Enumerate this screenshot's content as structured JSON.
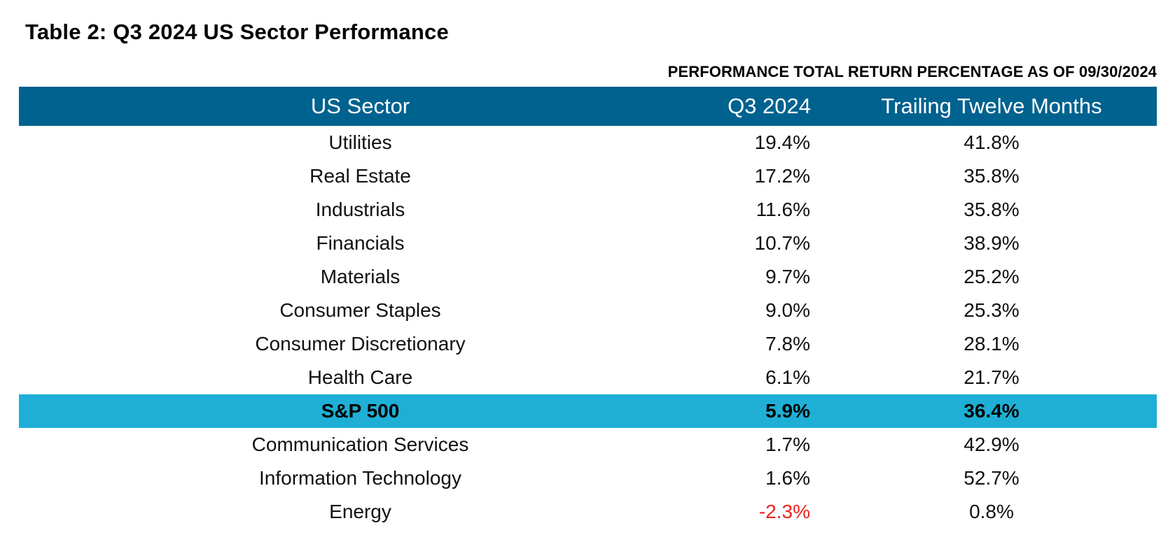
{
  "title": "Table 2: Q3 2024 US Sector Performance",
  "subtitle": "PERFORMANCE TOTAL RETURN PERCENTAGE AS OF 09/30/2024",
  "colors": {
    "header_bg": "#00628F",
    "highlight_bg": "#1FAFD6",
    "negative": "#E8231F"
  },
  "chart_data": {
    "type": "table",
    "columns": [
      "US Sector",
      "Q3 2024",
      "Trailing Twelve Months"
    ],
    "rows": [
      {
        "sector": "Utilities",
        "q3": "19.4%",
        "ttm": "41.8%",
        "q3_value": 19.4,
        "ttm_value": 41.8,
        "highlight": false
      },
      {
        "sector": "Real Estate",
        "q3": "17.2%",
        "ttm": "35.8%",
        "q3_value": 17.2,
        "ttm_value": 35.8,
        "highlight": false
      },
      {
        "sector": "Industrials",
        "q3": "11.6%",
        "ttm": "35.8%",
        "q3_value": 11.6,
        "ttm_value": 35.8,
        "highlight": false
      },
      {
        "sector": "Financials",
        "q3": "10.7%",
        "ttm": "38.9%",
        "q3_value": 10.7,
        "ttm_value": 38.9,
        "highlight": false
      },
      {
        "sector": "Materials",
        "q3": "9.7%",
        "ttm": "25.2%",
        "q3_value": 9.7,
        "ttm_value": 25.2,
        "highlight": false
      },
      {
        "sector": "Consumer Staples",
        "q3": "9.0%",
        "ttm": "25.3%",
        "q3_value": 9.0,
        "ttm_value": 25.3,
        "highlight": false
      },
      {
        "sector": "Consumer Discretionary",
        "q3": "7.8%",
        "ttm": "28.1%",
        "q3_value": 7.8,
        "ttm_value": 28.1,
        "highlight": false
      },
      {
        "sector": "Health Care",
        "q3": "6.1%",
        "ttm": "21.7%",
        "q3_value": 6.1,
        "ttm_value": 21.7,
        "highlight": false
      },
      {
        "sector": "S&P 500",
        "q3": "5.9%",
        "ttm": "36.4%",
        "q3_value": 5.9,
        "ttm_value": 36.4,
        "highlight": true
      },
      {
        "sector": "Communication Services",
        "q3": "1.7%",
        "ttm": "42.9%",
        "q3_value": 1.7,
        "ttm_value": 42.9,
        "highlight": false
      },
      {
        "sector": "Information Technology",
        "q3": "1.6%",
        "ttm": "52.7%",
        "q3_value": 1.6,
        "ttm_value": 52.7,
        "highlight": false
      },
      {
        "sector": "Energy",
        "q3": "-2.3%",
        "ttm": "0.8%",
        "q3_value": -2.3,
        "ttm_value": 0.8,
        "highlight": false
      }
    ]
  }
}
